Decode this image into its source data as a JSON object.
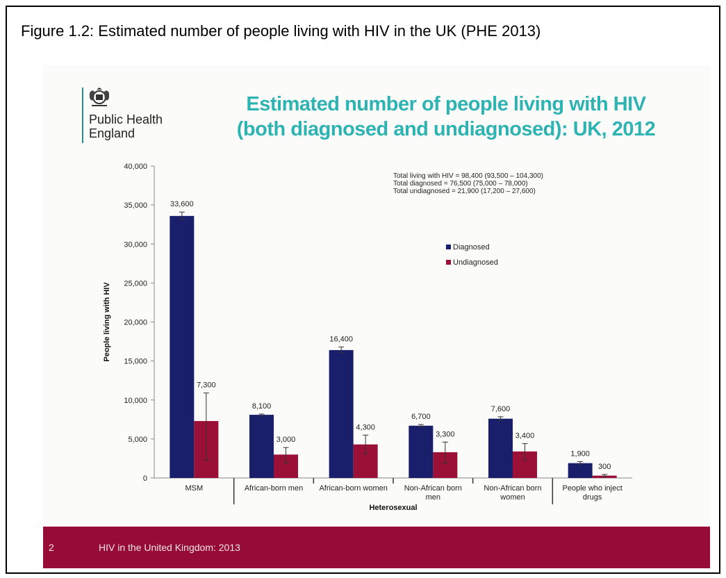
{
  "caption": "Figure 1.2: Estimated number of people living with HIV in the UK (PHE 2013)",
  "slide": {
    "logo": {
      "line1": "Public Health",
      "line2": "England",
      "icon": "royal-crest-icon"
    },
    "title_line1": "Estimated number of people living with HIV",
    "title_line2": "(both diagnosed and undiagnosed): UK, 2012",
    "title_color": "#2eb3b3",
    "footer": {
      "page_number": "2",
      "text": "HIV in the United Kingdom: 2013",
      "color": "#960c37"
    }
  },
  "chart_data": {
    "type": "bar",
    "categories": [
      [
        "MSM"
      ],
      [
        "African-born men"
      ],
      [
        "African-born women"
      ],
      [
        "Non-African born",
        "men"
      ],
      [
        "Non-African born",
        "women"
      ],
      [
        "People who inject",
        "drugs"
      ]
    ],
    "series": [
      {
        "name": "Diagnosed",
        "color": "#1a1f6b",
        "values": [
          33600,
          8100,
          16400,
          6700,
          7600,
          1900
        ],
        "labels": [
          "33,600",
          "8,100",
          "16,400",
          "6,700",
          "7,600",
          "1,900"
        ],
        "error_low": [
          33200,
          7950,
          16050,
          6550,
          7350,
          1750
        ],
        "error_high": [
          34100,
          8200,
          16800,
          6850,
          7850,
          2100
        ]
      },
      {
        "name": "Undiagnosed",
        "color": "#9a1036",
        "values": [
          7300,
          3000,
          4300,
          3300,
          3400,
          300
        ],
        "labels": [
          "7,300",
          "3,000",
          "4,300",
          "3,300",
          "3,400",
          "300"
        ],
        "error_low": [
          2300,
          1900,
          3100,
          1900,
          2300,
          150
        ],
        "error_high": [
          10900,
          3900,
          5500,
          4600,
          4400,
          450
        ]
      }
    ],
    "ylabel": "People living with HIV",
    "xlabel": "Heterosexual",
    "ylim": [
      0,
      40000
    ],
    "yticks": [
      0,
      5000,
      10000,
      15000,
      20000,
      25000,
      30000,
      35000,
      40000
    ],
    "ytick_labels": [
      "0",
      "5,000",
      "10,000",
      "15,000",
      "20,000",
      "25,000",
      "30,000",
      "35,000",
      "40,000"
    ],
    "annotations": [
      "Total living with HIV = 98,400 (93,500 – 104,300)",
      "Total diagnosed = 76,500 (75,000 – 78,000)",
      "Total undiagnosed = 21,900 (17,200 – 27,600)"
    ],
    "legend_position": "center-right",
    "grid": false
  }
}
